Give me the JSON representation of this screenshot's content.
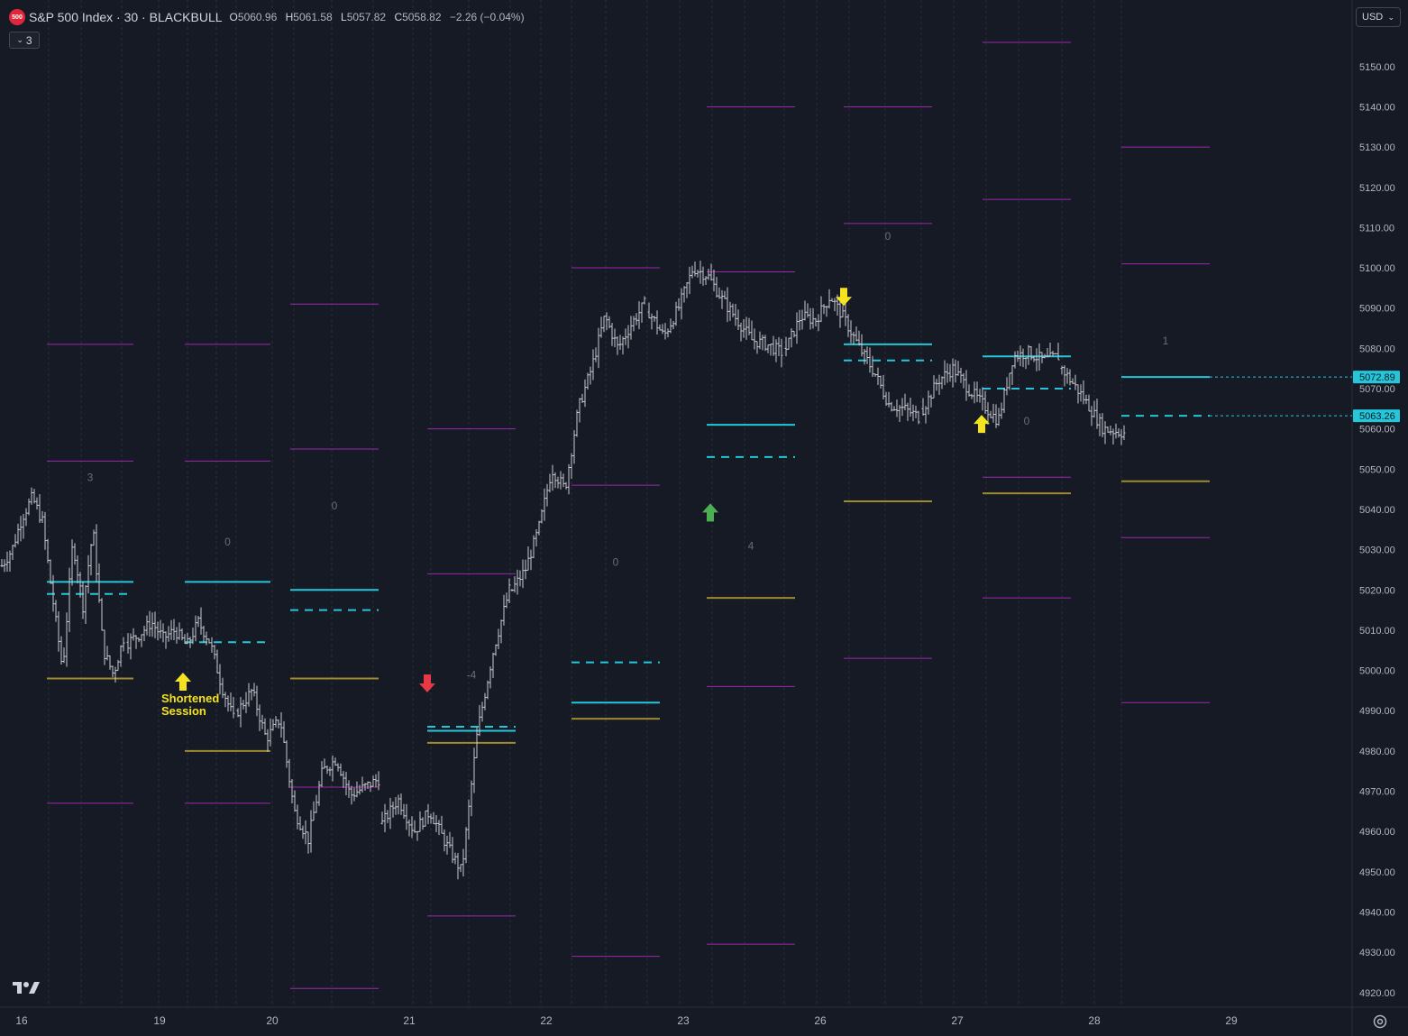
{
  "header": {
    "logo_text": "500",
    "symbol": "S&P 500 Index · 30 · BLACKBULL",
    "o_label": "O",
    "o_value": "5060.96",
    "h_label": "H",
    "h_value": "5061.58",
    "l_label": "L",
    "l_value": "5057.82",
    "c_label": "C",
    "c_value": "5058.82",
    "change": "−2.26 (−0.04%)"
  },
  "indicator_toggle": {
    "label": "3"
  },
  "currency": {
    "label": "USD"
  },
  "colors": {
    "background": "#161a25",
    "price_bars": "#c8cad0",
    "range_lines": "#9c27b0",
    "level_lines": "#26c6da",
    "gold_lines": "#a08a30",
    "arrow_up_yellow": "#f5e322",
    "arrow_up_green": "#4caf50",
    "arrow_down_red": "#e53945",
    "arrow_down_yellow": "#f5e322",
    "annotation_text": "#f5e322"
  },
  "chart_data": {
    "type": "ohlc",
    "title": "S&P 500 Index · 30 · BLACKBULL",
    "ylim": [
      4915,
      5160
    ],
    "y_ticks": [
      4920,
      4930,
      4940,
      4950,
      4960,
      4970,
      4980,
      4990,
      5000,
      5010,
      5020,
      5030,
      5040,
      5050,
      5060,
      5070,
      5080,
      5090,
      5100,
      5110,
      5120,
      5130,
      5140,
      5150
    ],
    "x_tick_labels": [
      "16",
      "19",
      "20",
      "21",
      "22",
      "23",
      "26",
      "27",
      "28",
      "29"
    ],
    "sessions": [
      {
        "label": "16",
        "high": 5081,
        "low": 4967,
        "q_high": 5052,
        "level": 5022,
        "dashed": 5019,
        "gold": 4998,
        "count": "3",
        "count_price": 5047
      },
      {
        "label": "19",
        "high": 5081,
        "low": 4967,
        "q_high": 5052,
        "level": 5022,
        "dashed": 5007,
        "gold": 4980,
        "count": "0",
        "count_price": 5031
      },
      {
        "label": "20",
        "high": 5091,
        "low": 4921,
        "q_high": 5055,
        "mid": 4971,
        "level": 5020,
        "dashed": 5015,
        "gold": 4998,
        "count": "0",
        "count_price": 5040
      },
      {
        "label": "21",
        "high": 5060,
        "low": 4939,
        "q_high": 5024,
        "level": 4985,
        "dashed": 4986,
        "gold": 4982,
        "count": "-4",
        "count_price": 4998
      },
      {
        "label": "22",
        "high": 5100,
        "low": 4929,
        "q_high": 5046,
        "level": 4992,
        "dashed": 5002,
        "gold": 4988,
        "count": "0",
        "count_price": 5026
      },
      {
        "label": "23",
        "high": 5140,
        "low": 4932,
        "q_high": 5099,
        "low2": 4996,
        "level": 5061,
        "dashed": 5053,
        "gold": 5018,
        "count": "4",
        "count_price": 5030
      },
      {
        "label": "26",
        "high": 5140,
        "low": 5003,
        "q_high": 5111,
        "q_low": 5042,
        "level": 5081,
        "dashed": 5077,
        "gold": 5042,
        "count": "0",
        "count_price": 5107
      },
      {
        "label": "27",
        "high": 5156,
        "low": 5018,
        "q_high": 5117,
        "q_low": 5048,
        "level": 5078,
        "dashed": 5070,
        "gold": 5044,
        "count": "0",
        "count_price": 5061
      },
      {
        "label": "28",
        "high": 5130,
        "low": 4992,
        "q_high": 5101,
        "q_low": 5033,
        "level": 5072.89,
        "dashed": 5063.26,
        "gold": 5047,
        "count": "1",
        "count_price": 5081
      }
    ],
    "price_labels": [
      {
        "value": "5072.89"
      },
      {
        "value": "5063.26"
      }
    ],
    "price_path": [
      {
        "d": "16",
        "p": 5026
      },
      {
        "d": "16",
        "p": 5030
      },
      {
        "d": "16",
        "p": 5038
      },
      {
        "d": "16",
        "p": 5043
      },
      {
        "d": "16",
        "p": 5037
      },
      {
        "d": "16",
        "p": 5018
      },
      {
        "d": "16",
        "p": 5000
      },
      {
        "d": "16",
        "p": 5032
      },
      {
        "d": "16",
        "p": 5016
      },
      {
        "d": "16",
        "p": 5035
      },
      {
        "d": "16",
        "p": 5005
      },
      {
        "d": "16",
        "p": 4999
      },
      {
        "d": "16",
        "p": 5008
      },
      {
        "d": "19",
        "p": 5007
      },
      {
        "d": "19",
        "p": 5009
      },
      {
        "d": "19",
        "p": 5012
      },
      {
        "d": "19",
        "p": 5008
      },
      {
        "d": "19",
        "p": 5010
      },
      {
        "d": "19",
        "p": 5006
      },
      {
        "d": "19",
        "p": 5012
      },
      {
        "d": "19",
        "p": 5007
      },
      {
        "d": "19",
        "p": 4996
      },
      {
        "d": "19",
        "p": 4988
      },
      {
        "d": "20",
        "p": 4990
      },
      {
        "d": "20",
        "p": 4995
      },
      {
        "d": "20",
        "p": 4983
      },
      {
        "d": "20",
        "p": 4988
      },
      {
        "d": "20",
        "p": 4965
      },
      {
        "d": "20",
        "p": 4958
      },
      {
        "d": "20",
        "p": 4975
      },
      {
        "d": "20",
        "p": 4978
      },
      {
        "d": "20",
        "p": 4969
      },
      {
        "d": "20",
        "p": 4971
      },
      {
        "d": "20",
        "p": 4973
      },
      {
        "d": "21",
        "p": 4962
      },
      {
        "d": "21",
        "p": 4968
      },
      {
        "d": "21",
        "p": 4960
      },
      {
        "d": "21",
        "p": 4965
      },
      {
        "d": "21",
        "p": 4957
      },
      {
        "d": "21",
        "p": 4950
      },
      {
        "d": "21",
        "p": 4985
      },
      {
        "d": "21",
        "p": 5005
      },
      {
        "d": "21",
        "p": 5020
      },
      {
        "d": "22",
        "p": 5020
      },
      {
        "d": "22",
        "p": 5025
      },
      {
        "d": "22",
        "p": 5035
      },
      {
        "d": "22",
        "p": 5050
      },
      {
        "d": "22",
        "p": 5045
      },
      {
        "d": "22",
        "p": 5065
      },
      {
        "d": "22",
        "p": 5075
      },
      {
        "d": "22",
        "p": 5088
      },
      {
        "d": "22",
        "p": 5080
      },
      {
        "d": "22",
        "p": 5086
      },
      {
        "d": "22",
        "p": 5091
      },
      {
        "d": "23",
        "p": 5089
      },
      {
        "d": "23",
        "p": 5083
      },
      {
        "d": "23",
        "p": 5090
      },
      {
        "d": "23",
        "p": 5100
      },
      {
        "d": "23",
        "p": 5098
      },
      {
        "d": "23",
        "p": 5092
      },
      {
        "d": "23",
        "p": 5087
      },
      {
        "d": "23",
        "p": 5082
      },
      {
        "d": "23",
        "p": 5081
      },
      {
        "d": "23",
        "p": 5079
      },
      {
        "d": "26",
        "p": 5080
      },
      {
        "d": "26",
        "p": 5088
      },
      {
        "d": "26",
        "p": 5087
      },
      {
        "d": "26",
        "p": 5093
      },
      {
        "d": "26",
        "p": 5087
      },
      {
        "d": "26",
        "p": 5080
      },
      {
        "d": "26",
        "p": 5074
      },
      {
        "d": "26",
        "p": 5066
      },
      {
        "d": "26",
        "p": 5065
      },
      {
        "d": "26",
        "p": 5063
      },
      {
        "d": "27",
        "p": 5065
      },
      {
        "d": "27",
        "p": 5072
      },
      {
        "d": "27",
        "p": 5075
      },
      {
        "d": "27",
        "p": 5070
      },
      {
        "d": "27",
        "p": 5066
      },
      {
        "d": "27",
        "p": 5062
      },
      {
        "d": "27",
        "p": 5078
      },
      {
        "d": "27",
        "p": 5079
      },
      {
        "d": "27",
        "p": 5077
      },
      {
        "d": "27",
        "p": 5078
      },
      {
        "d": "28",
        "p": 5075
      },
      {
        "d": "28",
        "p": 5068
      },
      {
        "d": "28",
        "p": 5060
      },
      {
        "d": "28",
        "p": 5059
      }
    ],
    "annotations": [
      {
        "type": "arrow-up",
        "color": "yellow",
        "day": "19",
        "price": 4997
      },
      {
        "type": "arrow-down",
        "color": "red",
        "day": "21",
        "price": 4997
      },
      {
        "type": "arrow-up",
        "color": "green",
        "day": "23",
        "price": 5039
      },
      {
        "type": "arrow-down",
        "color": "yellow",
        "day": "26",
        "price": 5093
      },
      {
        "type": "arrow-up",
        "color": "yellow",
        "day": "27",
        "price": 5061
      }
    ],
    "shortened_session_text": [
      "Shortened",
      "Session"
    ]
  }
}
